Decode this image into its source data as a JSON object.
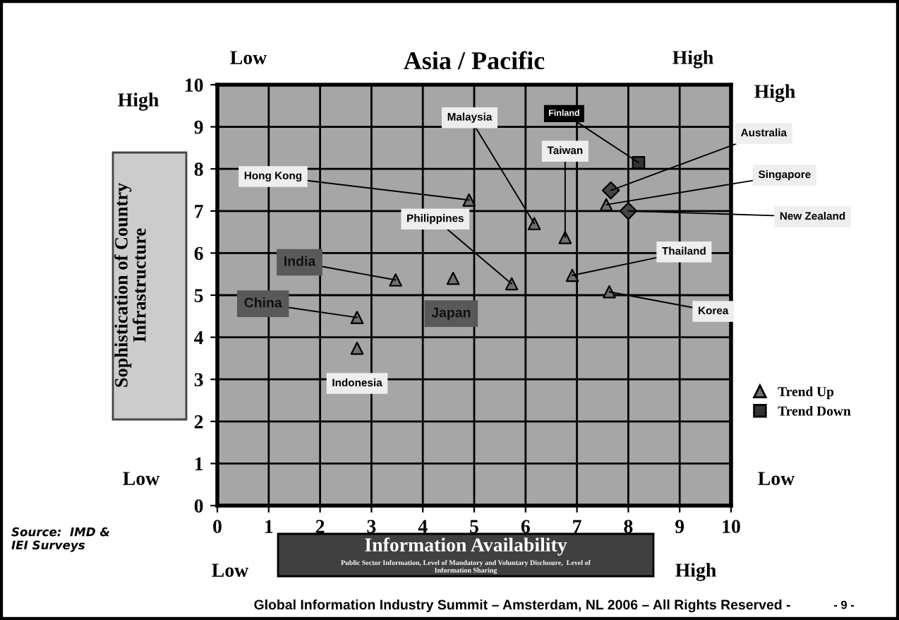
{
  "chart_data": {
    "type": "scatter",
    "title": "Asia / Pacific",
    "xlabel": "Information Availability",
    "ylabel": "Sophistication of Country\nInfrastructure",
    "xlim": [
      0,
      10
    ],
    "ylim": [
      0,
      10
    ],
    "xticks": [
      0,
      1,
      2,
      3,
      4,
      5,
      6,
      7,
      8,
      9,
      10
    ],
    "yticks": [
      0,
      1,
      2,
      3,
      4,
      5,
      6,
      7,
      8,
      9,
      10
    ],
    "grid": true,
    "legend": "right",
    "series": [
      {
        "name": "Trend Up",
        "color": "#707070",
        "marker": "triangle",
        "x": [
          7.57,
          4.9,
          6.17,
          6.77,
          6.91,
          7.63,
          5.73,
          4.59,
          3.47,
          2.72,
          2.72
        ],
        "values": [
          7.15,
          7.26,
          6.7,
          6.37,
          5.47,
          5.08,
          5.27,
          5.4,
          5.36,
          4.47,
          3.74
        ]
      },
      {
        "name": "Trend Down",
        "color": "#333333",
        "marker": "square",
        "x": [
          8.2
        ],
        "values": [
          8.15
        ]
      },
      {
        "color": "#444444",
        "marker": "diamond",
        "x": [
          7.66,
          8.0
        ],
        "values": [
          7.49,
          7.0
        ]
      }
    ],
    "annotations": [
      {
        "text": "Finland",
        "x": 8.2,
        "y": 8.15
      },
      {
        "text": "Australia",
        "x": 7.66,
        "y": 7.49
      },
      {
        "text": "Singapore",
        "x": 7.57,
        "y": 7.15
      },
      {
        "text": "New Zealand",
        "x": 8.0,
        "y": 7.0
      },
      {
        "text": "Hong Kong",
        "x": 4.9,
        "y": 7.26
      },
      {
        "text": "Malaysia",
        "x": 6.17,
        "y": 6.7
      },
      {
        "text": "Taiwan",
        "x": 6.77,
        "y": 6.37
      },
      {
        "text": "Thailand",
        "x": 6.91,
        "y": 5.47
      },
      {
        "text": "Korea",
        "x": 7.63,
        "y": 5.08
      },
      {
        "text": "Philippines",
        "x": 5.73,
        "y": 5.27
      },
      {
        "text": "Japan",
        "x": 4.59,
        "y": 5.4
      },
      {
        "text": "India",
        "x": 3.47,
        "y": 5.36
      },
      {
        "text": "China",
        "x": 2.72,
        "y": 4.47
      },
      {
        "text": "Indonesia",
        "x": 2.72,
        "y": 3.74
      },
      "Low",
      "High",
      "High",
      "High",
      "Low",
      "Low",
      "Low",
      "High",
      "Public Sector Information, Level of Mandatory and Voluntary Disclosure,  Level of\nInformation Sharing",
      "Source:  IMD &\nIEI Surveys",
      "Global Information Industry Summit – Amsterdam, NL 2006 – All Rights Reserved -",
      "- 9 -"
    ]
  }
}
